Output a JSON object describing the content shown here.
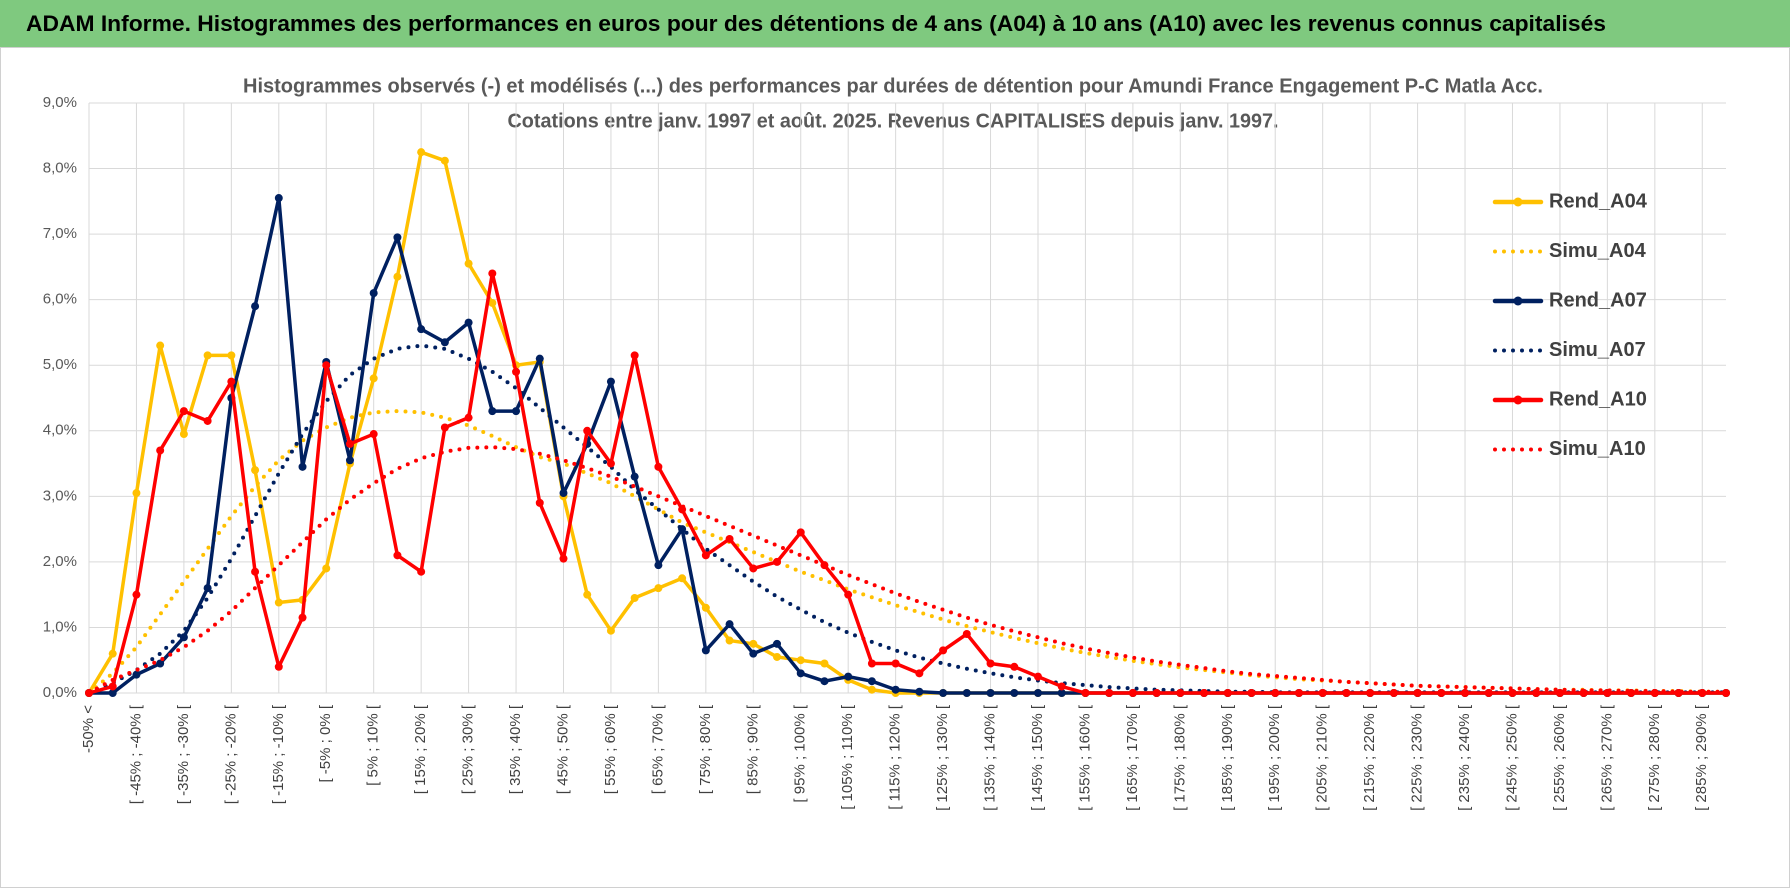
{
  "header": {
    "title": "ADAM Informe. Histogrammes des performances en euros pour des détentions de 4 ans (A04) à 10 ans (A10) avec les revenus connus capitalisés"
  },
  "chart_data": {
    "type": "line",
    "title": [
      "Histogrammes observés (-) et modélisés (...) des performances par durées de détention pour Amundi France Engagement P-C Matla Acc.",
      "Cotations entre janv. 1997 et août. 2025. Revenus CAPITALISES depuis janv. 1997."
    ],
    "categories": [
      "-50% <",
      null,
      "[ -45% ; -40% [",
      null,
      "[ -35% ; -30% [",
      null,
      "[ -25% ; -20% [",
      null,
      "[ -15% ; -10% [",
      null,
      "[ -5% ; 0% [",
      null,
      "[ 5% ; 10% [",
      null,
      "[ 15% ; 20% [",
      null,
      "[ 25% ; 30% [",
      null,
      "[ 35% ; 40% [",
      null,
      "[ 45% ; 50% [",
      null,
      "[ 55% ; 60% [",
      null,
      "[ 65% ; 70% [",
      null,
      "[ 75% ; 80% [",
      null,
      "[ 85% ; 90% [",
      null,
      "[ 95% ; 100% [",
      null,
      "[ 105% ; 110% [",
      null,
      "[ 115% ; 120% [",
      null,
      "[ 125% ; 130% [",
      null,
      "[ 135% ; 140% [",
      null,
      "[ 145% ; 150% [",
      null,
      "[ 155% ; 160% [",
      null,
      "[ 165% ; 170% [",
      null,
      "[ 175% ; 180% [",
      null,
      "[ 185% ; 190% [",
      null,
      "[ 195% ; 200% [",
      null,
      "[ 205% ; 210% [",
      null,
      "[ 215% ; 220% [",
      null,
      "[ 225% ; 230% [",
      null,
      "[ 235% ; 240% [",
      null,
      "[ 245% ; 250% [",
      null,
      "[ 255% ; 260% [",
      null,
      "[ 265% ; 270% [",
      null,
      "[ 275% ; 280% [",
      null,
      "[ 285% ; 290% [",
      null
    ],
    "ylim": [
      0,
      9
    ],
    "yticks": [
      {
        "value": 0,
        "label": "0,0%"
      },
      {
        "value": 1,
        "label": "1,0%"
      },
      {
        "value": 2,
        "label": "2,0%"
      },
      {
        "value": 3,
        "label": "3,0%"
      },
      {
        "value": 4,
        "label": "4,0%"
      },
      {
        "value": 5,
        "label": "5,0%"
      },
      {
        "value": 6,
        "label": "6,0%"
      },
      {
        "value": 7,
        "label": "7,0%"
      },
      {
        "value": 8,
        "label": "8,0%"
      },
      {
        "value": 9,
        "label": "9,0%"
      }
    ],
    "grid": true,
    "legend": "right",
    "series": [
      {
        "name": "Rend_A04",
        "color": "#ffc000",
        "line_style": "solid",
        "marker": true,
        "values": [
          0,
          0.6,
          3.05,
          5.3,
          3.95,
          5.15,
          5.15,
          3.4,
          1.38,
          1.42,
          1.9,
          3.5,
          4.8,
          6.35,
          8.25,
          8.12,
          6.55,
          5.95,
          5.0,
          5.05,
          3.0,
          1.5,
          0.95,
          1.45,
          1.6,
          1.75,
          1.3,
          0.8,
          0.75,
          0.55,
          0.5,
          0.45,
          0.2,
          0.05,
          0,
          0,
          0,
          0,
          0,
          0,
          0,
          0,
          0,
          0,
          0,
          0,
          0,
          0,
          0,
          0,
          0,
          0,
          0,
          0,
          0,
          0,
          0,
          0,
          0,
          0,
          0,
          0,
          0,
          0,
          0,
          0,
          0,
          0,
          0,
          0
        ]
      },
      {
        "name": "Simu_A04",
        "color": "#ffc000",
        "line_style": "dotted",
        "marker": false,
        "values": [
          0,
          0.3,
          0.7,
          1.2,
          1.7,
          2.2,
          2.7,
          3.15,
          3.55,
          3.85,
          4.05,
          4.2,
          4.28,
          4.3,
          4.28,
          4.2,
          4.08,
          3.92,
          3.75,
          3.6,
          3.5,
          3.35,
          3.2,
          3.0,
          2.8,
          2.6,
          2.45,
          2.3,
          2.15,
          2.0,
          1.85,
          1.72,
          1.58,
          1.46,
          1.34,
          1.23,
          1.12,
          1.02,
          0.93,
          0.84,
          0.76,
          0.68,
          0.61,
          0.55,
          0.49,
          0.44,
          0.39,
          0.35,
          0.31,
          0.27,
          0.24,
          0.21,
          0.19,
          0.17,
          0.15,
          0.13,
          0.11,
          0.1,
          0.09,
          0.08,
          0.07,
          0.06,
          0.05,
          0.05,
          0.04,
          0.04,
          0.03,
          0.03,
          0.02,
          0.02
        ]
      },
      {
        "name": "Rend_A07",
        "color": "#002060",
        "line_style": "solid",
        "marker": true,
        "values": [
          0,
          0,
          0.28,
          0.45,
          0.85,
          1.6,
          4.5,
          5.9,
          7.55,
          3.45,
          5.05,
          3.55,
          6.1,
          6.95,
          5.55,
          5.35,
          5.65,
          4.3,
          4.3,
          5.1,
          3.05,
          3.8,
          4.75,
          3.3,
          1.95,
          2.5,
          0.65,
          1.05,
          0.6,
          0.75,
          0.3,
          0.18,
          0.25,
          0.18,
          0.05,
          0.02,
          0,
          0,
          0,
          0,
          0,
          0,
          0,
          0,
          0,
          0,
          0,
          0,
          0,
          0,
          0,
          0,
          0,
          0,
          0,
          0,
          0,
          0,
          0,
          0,
          0,
          0,
          0,
          0,
          0,
          0,
          0,
          0,
          0,
          0
        ]
      },
      {
        "name": "Simu_A07",
        "color": "#002060",
        "line_style": "dotted",
        "marker": false,
        "values": [
          0,
          0.15,
          0.35,
          0.6,
          0.95,
          1.45,
          2.05,
          2.7,
          3.35,
          3.95,
          4.45,
          4.85,
          5.1,
          5.25,
          5.3,
          5.25,
          5.1,
          4.9,
          4.65,
          4.35,
          4.05,
          3.75,
          3.45,
          3.1,
          2.8,
          2.5,
          2.2,
          1.95,
          1.7,
          1.47,
          1.27,
          1.08,
          0.92,
          0.78,
          0.65,
          0.54,
          0.45,
          0.37,
          0.3,
          0.24,
          0.19,
          0.15,
          0.12,
          0.09,
          0.07,
          0.05,
          0.04,
          0.03,
          0.02,
          0.02,
          0.01,
          0.01,
          0.01,
          0.01,
          0.01,
          0.01,
          0.01,
          0.01,
          0.01,
          0.01,
          0.01,
          0.01,
          0.01,
          0.01,
          0.01,
          0.01,
          0.01,
          0.01,
          0.01,
          0.01
        ]
      },
      {
        "name": "Rend_A10",
        "color": "#ff0000",
        "line_style": "solid",
        "marker": true,
        "values": [
          0,
          0.1,
          1.5,
          3.7,
          4.3,
          4.15,
          4.75,
          1.85,
          0.4,
          1.15,
          5.0,
          3.8,
          3.95,
          2.1,
          1.85,
          4.05,
          4.2,
          6.4,
          4.9,
          2.9,
          2.05,
          4.0,
          3.5,
          5.15,
          3.45,
          2.8,
          2.1,
          2.35,
          1.9,
          2.0,
          2.45,
          1.95,
          1.5,
          0.45,
          0.45,
          0.3,
          0.65,
          0.9,
          0.45,
          0.4,
          0.25,
          0.1,
          0,
          0,
          0,
          0,
          0,
          0,
          0,
          0,
          0,
          0,
          0,
          0,
          0,
          0,
          0,
          0,
          0,
          0,
          0,
          0,
          0,
          0,
          0,
          0,
          0,
          0,
          0,
          0
        ]
      },
      {
        "name": "Simu_A10",
        "color": "#ff0000",
        "line_style": "dotted",
        "marker": false,
        "values": [
          0,
          0.2,
          0.35,
          0.5,
          0.7,
          0.95,
          1.25,
          1.6,
          1.95,
          2.3,
          2.65,
          2.95,
          3.2,
          3.42,
          3.58,
          3.68,
          3.74,
          3.75,
          3.72,
          3.65,
          3.55,
          3.43,
          3.3,
          3.15,
          3.0,
          2.85,
          2.7,
          2.55,
          2.4,
          2.25,
          2.1,
          1.95,
          1.8,
          1.66,
          1.52,
          1.39,
          1.27,
          1.15,
          1.04,
          0.94,
          0.85,
          0.76,
          0.68,
          0.61,
          0.54,
          0.48,
          0.43,
          0.38,
          0.33,
          0.29,
          0.26,
          0.23,
          0.2,
          0.17,
          0.15,
          0.13,
          0.11,
          0.1,
          0.09,
          0.08,
          0.07,
          0.06,
          0.05,
          0.04,
          0.04,
          0.03,
          0.03,
          0.02,
          0.02,
          0.02
        ]
      }
    ]
  }
}
